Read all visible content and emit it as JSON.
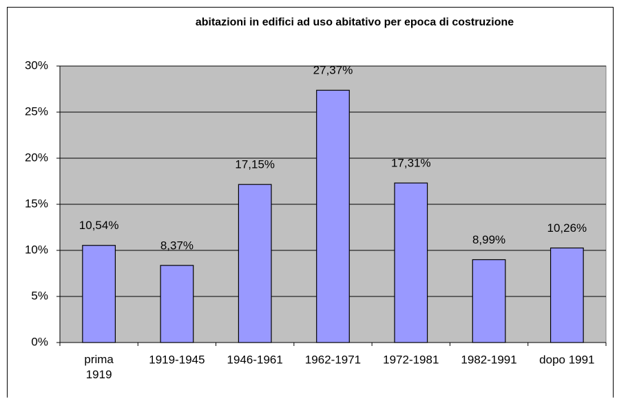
{
  "chart_data": {
    "type": "bar",
    "title": "abitazioni in edifici ad uso abitativo per epoca di costruzione",
    "categories": [
      "prima\n1919",
      "1919-1945",
      "1946-1961",
      "1962-1971",
      "1972-1981",
      "1982-1991",
      "dopo 1991"
    ],
    "values": [
      10.54,
      8.37,
      17.15,
      27.37,
      17.31,
      8.99,
      10.26
    ],
    "value_labels": [
      "10,54%",
      "8,37%",
      "17,15%",
      "27,37%",
      "17,31%",
      "8,99%",
      "10,26%"
    ],
    "color": "#9999ff",
    "ylim": [
      0,
      30
    ],
    "yticks": [
      {
        "value": 0,
        "label": "0%"
      },
      {
        "value": 5,
        "label": "5%"
      },
      {
        "value": 10,
        "label": "10%"
      },
      {
        "value": 15,
        "label": "15%"
      },
      {
        "value": 20,
        "label": "20%"
      },
      {
        "value": 25,
        "label": "25%"
      },
      {
        "value": 30,
        "label": "30%"
      }
    ],
    "grid": true
  }
}
